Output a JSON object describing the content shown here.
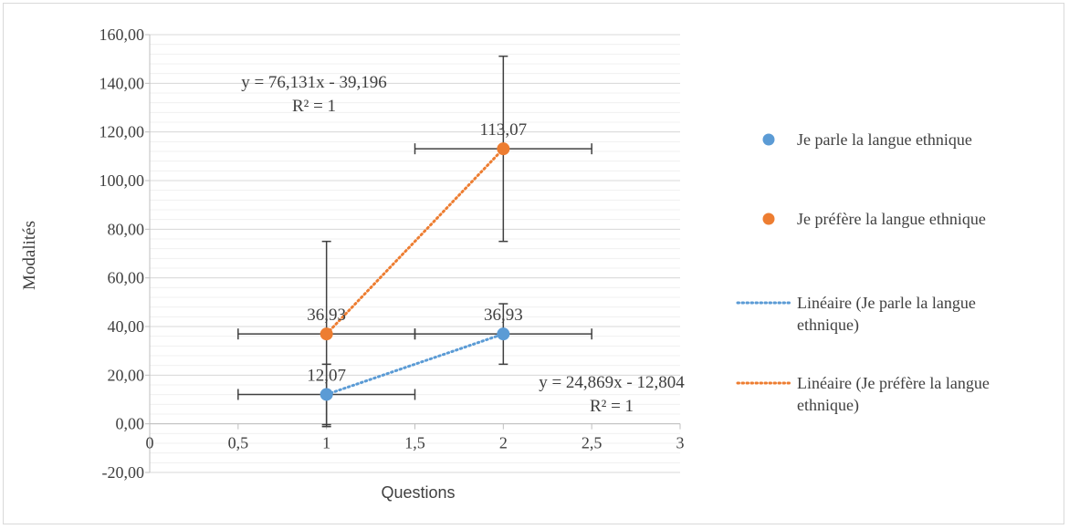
{
  "chart_data": {
    "type": "scatter",
    "title": "",
    "xlabel": "Questions",
    "ylabel": "Modalités",
    "xlim": [
      0,
      3
    ],
    "ylim": [
      -20,
      160
    ],
    "x_ticks": [
      "0",
      "0,5",
      "1",
      "1,5",
      "2",
      "2,5",
      "3"
    ],
    "x_tick_values": [
      0,
      0.5,
      1,
      1.5,
      2,
      2.5,
      3
    ],
    "y_ticks": [
      "-20,00",
      "0,00",
      "20,00",
      "40,00",
      "60,00",
      "80,00",
      "100,00",
      "120,00",
      "140,00",
      "160,00"
    ],
    "y_tick_values": [
      -20,
      0,
      20,
      40,
      60,
      80,
      100,
      120,
      140,
      160
    ],
    "grid": true,
    "legend_position": "right",
    "series": [
      {
        "name": "Je parle la langue ethnique",
        "color": "#5b9bd5",
        "x": [
          1,
          2
        ],
        "y": [
          12.07,
          36.93
        ],
        "labels": [
          "12,07",
          "36,93"
        ],
        "y_error": [
          12.43,
          12.43
        ],
        "x_error": [
          0.5,
          0.5
        ]
      },
      {
        "name": "Je préfère la langue ethnique",
        "color": "#ed7d31",
        "x": [
          1,
          2
        ],
        "y": [
          36.93,
          113.07
        ],
        "labels": [
          "36,93",
          "113,07"
        ],
        "y_error": [
          38.07,
          38.07
        ],
        "x_error": [
          0.5,
          0.5
        ]
      }
    ],
    "trendlines": [
      {
        "name": "Linéaire (Je parle la langue ethnique)",
        "legend_lines": [
          "Linéaire (Je parle la langue",
          "ethnique)"
        ],
        "color": "#5b9bd5",
        "equation": "y = 24,869x - 12,804",
        "r2": "R² = 1"
      },
      {
        "name": "Linéaire (Je préfère la langue ethnique)",
        "legend_lines": [
          "Linéaire (Je préfère la langue",
          "ethnique)"
        ],
        "color": "#ed7d31",
        "equation": "y = 76,131x - 39,196",
        "r2": "R² = 1"
      }
    ]
  }
}
